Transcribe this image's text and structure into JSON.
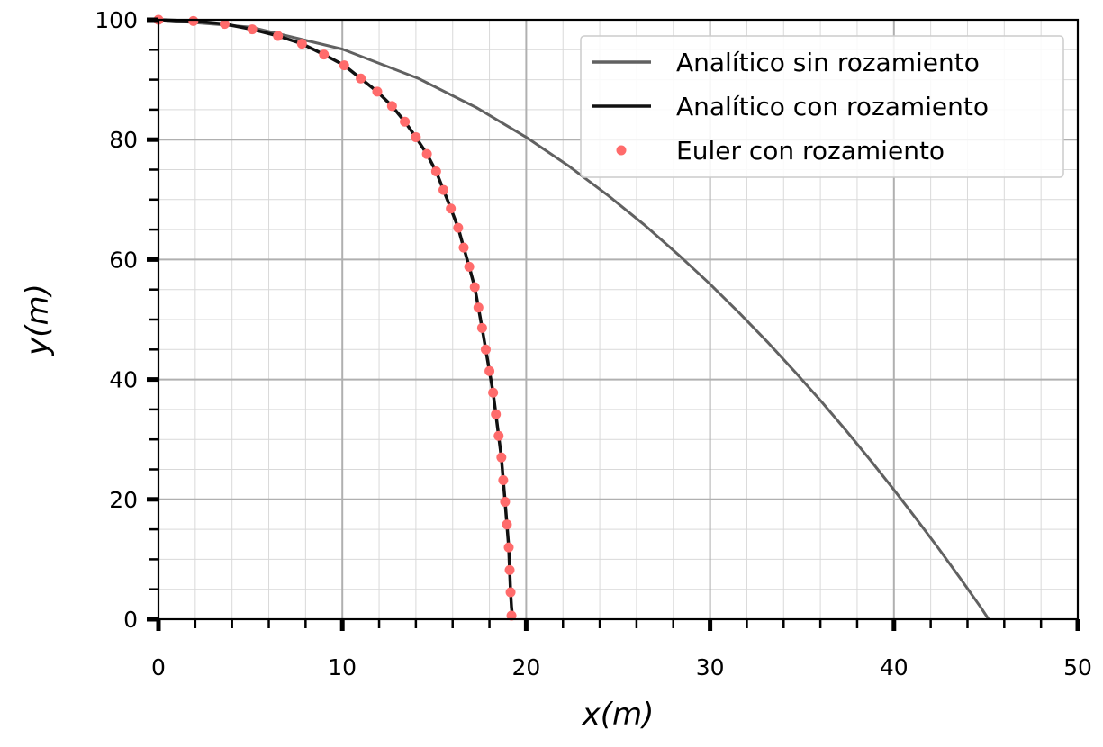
{
  "chart_data": {
    "type": "line",
    "xlabel": "x(m)",
    "ylabel": "y(m)",
    "xlim": [
      0,
      50
    ],
    "ylim": [
      0,
      100
    ],
    "xticks": [
      0,
      10,
      20,
      30,
      40,
      50
    ],
    "yticks": [
      0,
      20,
      40,
      60,
      80,
      100
    ],
    "grid": true,
    "legend_position": "top-right",
    "series": [
      {
        "name": "Analítico sin rozamiento",
        "kind": "line",
        "color": "#616161",
        "x": [
          0,
          5,
          10,
          14.14,
          17.32,
          20,
          22.36,
          24.49,
          26.46,
          28.28,
          30,
          31.62,
          33.17,
          34.64,
          36.06,
          37.42,
          38.73,
          40,
          41.23,
          42.43,
          43.59,
          44.72,
          45.15
        ],
        "y": [
          100,
          98.78,
          95.1,
          90.2,
          85.3,
          80.4,
          75.5,
          70.6,
          65.7,
          60.8,
          55.9,
          51.0,
          46.1,
          41.2,
          36.3,
          31.4,
          26.5,
          21.6,
          16.7,
          11.8,
          6.9,
          2.0,
          0
        ]
      },
      {
        "name": "Analítico con rozamiento",
        "kind": "line",
        "color": "#111111",
        "x": [
          0,
          1.9,
          3.6,
          5.1,
          6.5,
          7.8,
          9.0,
          10.1,
          11.0,
          11.9,
          12.7,
          13.4,
          14.0,
          14.6,
          15.1,
          15.5,
          15.9,
          16.3,
          16.6,
          16.9,
          17.2,
          17.4,
          17.6,
          17.8,
          18.0,
          18.2,
          18.35,
          18.5,
          18.65,
          18.75,
          18.85,
          18.95,
          19.05,
          19.1,
          19.15,
          19.2,
          19.25
        ],
        "y": [
          100,
          99.8,
          99.3,
          98.4,
          97.3,
          96.0,
          94.2,
          92.4,
          90.2,
          88.0,
          85.6,
          83.0,
          80.4,
          77.6,
          74.7,
          71.6,
          68.5,
          65.3,
          62.0,
          58.8,
          55.4,
          52.0,
          48.6,
          45.0,
          41.4,
          37.8,
          34.2,
          30.6,
          27.0,
          23.2,
          19.6,
          15.8,
          12.0,
          8.2,
          4.5,
          2.0,
          0.5
        ]
      },
      {
        "name": "Euler con rozamiento",
        "kind": "scatter",
        "color": "#ff6b6b",
        "x": [
          0,
          1.9,
          3.6,
          5.1,
          6.5,
          7.8,
          9.0,
          10.1,
          11.0,
          11.9,
          12.7,
          13.4,
          14.0,
          14.6,
          15.1,
          15.5,
          15.9,
          16.3,
          16.6,
          16.9,
          17.2,
          17.4,
          17.6,
          17.8,
          18.0,
          18.2,
          18.35,
          18.5,
          18.65,
          18.75,
          18.85,
          18.95,
          19.05,
          19.1,
          19.15,
          19.2
        ],
        "y": [
          100,
          99.8,
          99.3,
          98.4,
          97.3,
          96.0,
          94.2,
          92.4,
          90.2,
          88.0,
          85.6,
          83.0,
          80.4,
          77.6,
          74.7,
          71.6,
          68.5,
          65.3,
          62.0,
          58.8,
          55.4,
          52.0,
          48.6,
          45.0,
          41.4,
          37.8,
          34.2,
          30.6,
          27.0,
          23.2,
          19.6,
          15.8,
          12.0,
          8.2,
          4.5,
          0.6
        ]
      }
    ]
  }
}
